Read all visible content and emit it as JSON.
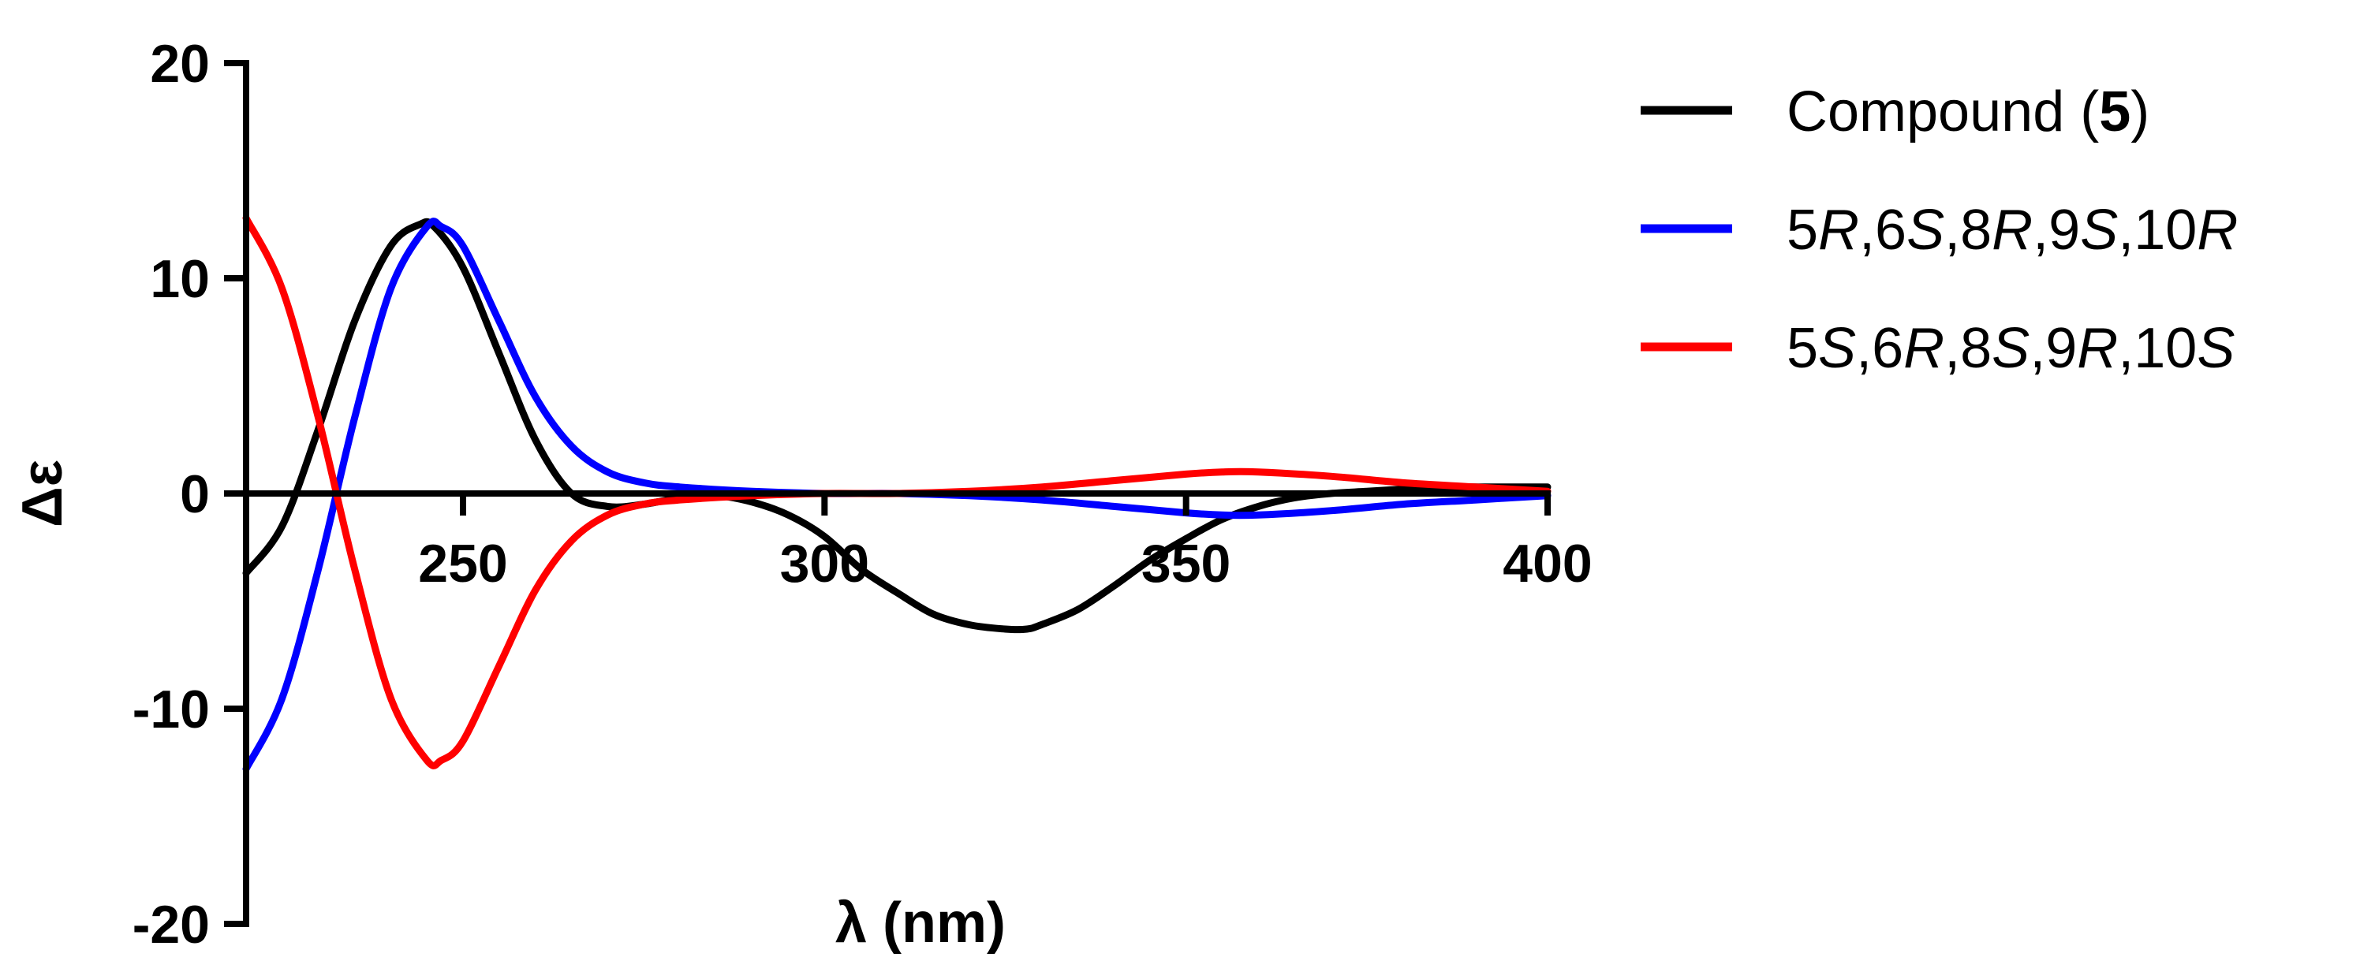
{
  "chart_data": {
    "type": "line",
    "xlabel": "λ (nm)",
    "ylabel": "Δε",
    "xlim": [
      220,
      400
    ],
    "ylim": [
      -20,
      20
    ],
    "x_ticks": [
      250,
      300,
      350,
      400
    ],
    "y_ticks": [
      -20,
      -10,
      0,
      10,
      20
    ],
    "legend_position": "top-right",
    "series": [
      {
        "name": "Compound (5)",
        "color": "#000000",
        "x": [
          220,
          225,
          230,
          235,
          240,
          244,
          246,
          250,
          255,
          260,
          265,
          270,
          275,
          280,
          285,
          290,
          295,
          300,
          305,
          310,
          315,
          320,
          325,
          328,
          330,
          335,
          340,
          345,
          350,
          355,
          360,
          365,
          370,
          375,
          380,
          385,
          390,
          395,
          400
        ],
        "y": [
          -3.7,
          -1.5,
          3.0,
          8.0,
          11.5,
          12.5,
          12.4,
          10.5,
          6.5,
          2.5,
          0.0,
          -0.6,
          -0.5,
          -0.2,
          -0.1,
          -0.4,
          -1.0,
          -2.0,
          -3.5,
          -4.6,
          -5.6,
          -6.1,
          -6.3,
          -6.3,
          -6.1,
          -5.4,
          -4.3,
          -3.1,
          -2.1,
          -1.2,
          -0.6,
          -0.2,
          0.0,
          0.1,
          0.2,
          0.3,
          0.3,
          0.3,
          0.3
        ]
      },
      {
        "name": "5R,6S,8R,9S,10R",
        "color": "#0000ff",
        "x": [
          220,
          225,
          230,
          235,
          240,
          245,
          247,
          250,
          255,
          260,
          265,
          270,
          275,
          280,
          290,
          300,
          310,
          320,
          330,
          340,
          350,
          355,
          360,
          370,
          380,
          390,
          400
        ],
        "y": [
          -12.8,
          -9.5,
          -3.5,
          3.5,
          9.5,
          12.4,
          12.4,
          11.5,
          8.0,
          4.5,
          2.2,
          1.0,
          0.5,
          0.3,
          0.1,
          0.0,
          0.0,
          -0.1,
          -0.3,
          -0.6,
          -0.9,
          -1.0,
          -1.0,
          -0.8,
          -0.5,
          -0.3,
          -0.1
        ]
      },
      {
        "name": "5S,6R,8S,9R,10S",
        "color": "#ff0000",
        "x": [
          220,
          225,
          230,
          235,
          240,
          245,
          247,
          250,
          255,
          260,
          265,
          270,
          275,
          280,
          290,
          300,
          310,
          320,
          330,
          340,
          350,
          355,
          360,
          370,
          380,
          390,
          400
        ],
        "y": [
          12.8,
          9.5,
          3.5,
          -3.5,
          -9.5,
          -12.4,
          -12.4,
          -11.5,
          -8.0,
          -4.5,
          -2.2,
          -1.0,
          -0.5,
          -0.3,
          -0.1,
          0.0,
          0.0,
          0.1,
          0.3,
          0.6,
          0.9,
          1.0,
          1.0,
          0.8,
          0.5,
          0.3,
          0.1
        ]
      }
    ],
    "legend": [
      {
        "parts": [
          {
            "text": "Compound ("
          },
          {
            "text": "5",
            "bold": true
          },
          {
            "text": ")"
          }
        ]
      },
      {
        "parts": [
          {
            "text": "5"
          },
          {
            "text": "R",
            "italic": true
          },
          {
            "text": ",6"
          },
          {
            "text": "S",
            "italic": true
          },
          {
            "text": ",8"
          },
          {
            "text": "R",
            "italic": true
          },
          {
            "text": ",9"
          },
          {
            "text": "S",
            "italic": true
          },
          {
            "text": ",10"
          },
          {
            "text": "R",
            "italic": true
          }
        ]
      },
      {
        "parts": [
          {
            "text": "5"
          },
          {
            "text": "S",
            "italic": true
          },
          {
            "text": ",6"
          },
          {
            "text": "R",
            "italic": true
          },
          {
            "text": ",8"
          },
          {
            "text": "S",
            "italic": true
          },
          {
            "text": ",9"
          },
          {
            "text": "R",
            "italic": true
          },
          {
            "text": ",10"
          },
          {
            "text": "S",
            "italic": true
          }
        ]
      }
    ]
  }
}
